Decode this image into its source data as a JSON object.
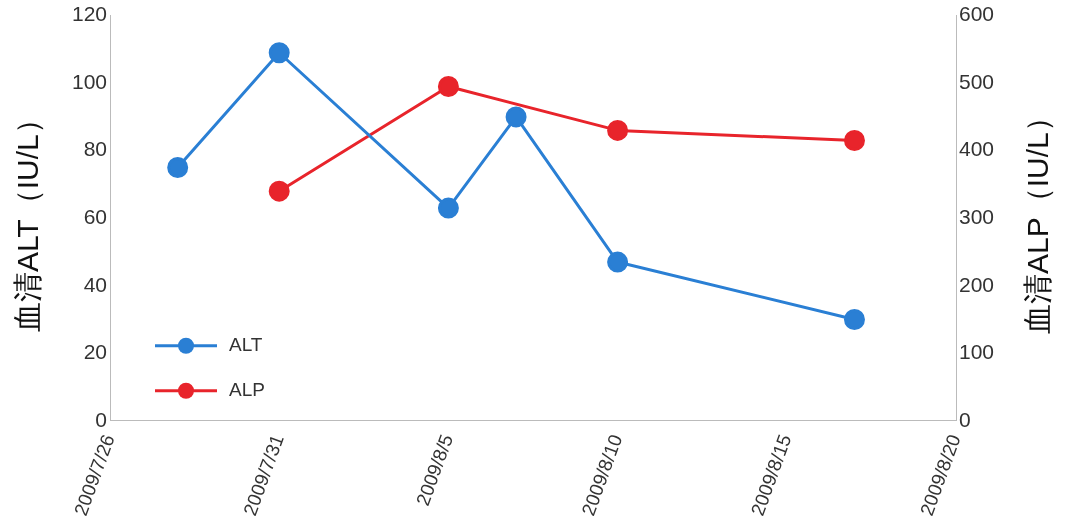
{
  "chart_data": {
    "type": "line",
    "ylabel": "血清ALT（IU/L）",
    "y2label": "血清ALP（IU/L）",
    "xlim": [
      "2009-07-26",
      "2009-08-20"
    ],
    "xticks": [
      {
        "value": "2009-07-26",
        "label": "2009/7/26"
      },
      {
        "value": "2009-07-31",
        "label": "2009/7/31"
      },
      {
        "value": "2009-08-05",
        "label": "2009/8/5"
      },
      {
        "value": "2009-08-10",
        "label": "2009/8/10"
      },
      {
        "value": "2009-08-15",
        "label": "2009/8/15"
      },
      {
        "value": "2009-08-20",
        "label": "2009/8/20"
      }
    ],
    "ylim": [
      0,
      120
    ],
    "yticks": [
      0,
      20,
      40,
      60,
      80,
      100,
      120
    ],
    "y2lim": [
      0,
      600
    ],
    "y2ticks": [
      0,
      100,
      200,
      300,
      400,
      500,
      600
    ],
    "grid": false,
    "legend": "bottom left",
    "marker": "circle",
    "line_style": "solid",
    "series": [
      {
        "name": "ALT",
        "color": "#2a7fd4",
        "x": [
          "2009-07-28",
          "2009-07-31",
          "2009-08-05",
          "2009-08-07",
          "2009-08-10",
          "2009-08-17"
        ],
        "values": [
          75,
          109,
          63,
          90,
          47,
          30
        ]
      },
      {
        "name": "ALP",
        "color": "#e8242b",
        "axis": "y2",
        "x": [
          "2009-07-31",
          "2009-08-05",
          "2009-08-10",
          "2009-08-17"
        ],
        "values": [
          340,
          495,
          430,
          415
        ]
      }
    ]
  }
}
